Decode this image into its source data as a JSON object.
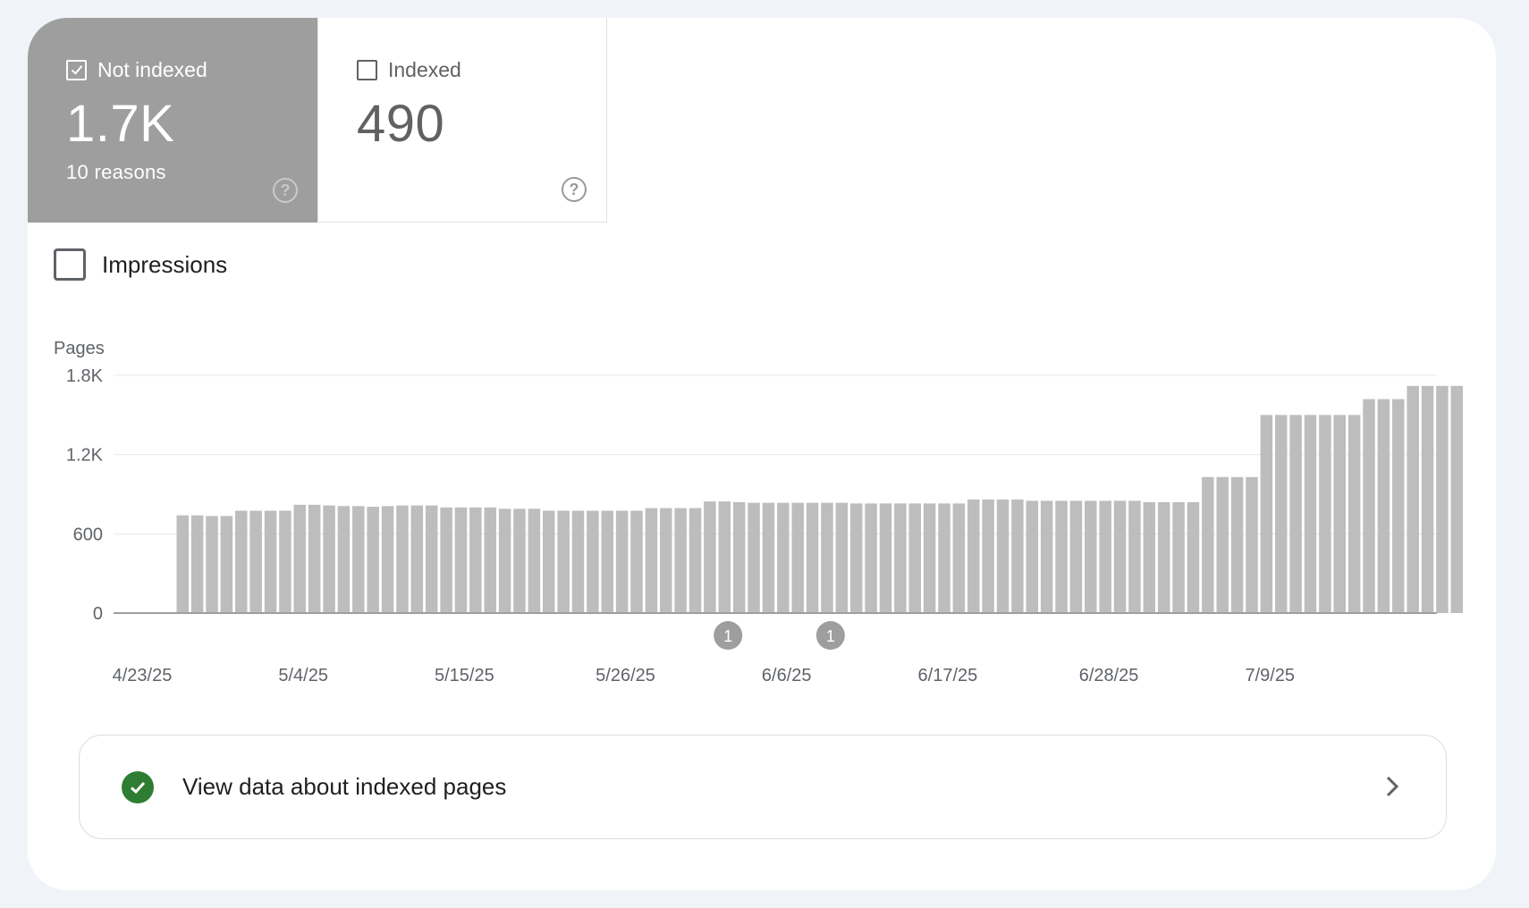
{
  "tiles": {
    "not_indexed": {
      "label": "Not indexed",
      "value": "1.7K",
      "sub": "10 reasons",
      "selected": true
    },
    "indexed": {
      "label": "Indexed",
      "value": "490",
      "selected": false
    }
  },
  "impressions": {
    "label": "Impressions",
    "checked": false
  },
  "chart_data": {
    "type": "bar",
    "ylabel": "Pages",
    "yticks": [
      "0",
      "600",
      "1.2K",
      "1.8K"
    ],
    "ylim": [
      0,
      1800
    ],
    "xtick_labels": [
      "4/23/25",
      "5/4/25",
      "5/15/25",
      "5/26/25",
      "6/6/25",
      "6/17/25",
      "6/28/25",
      "7/9/25"
    ],
    "start_date": "4/23/25",
    "grid": true,
    "series": [
      {
        "color": "#bdbdbd",
        "values": [
          0,
          0,
          0,
          0,
          740,
          740,
          735,
          735,
          775,
          775,
          775,
          775,
          820,
          820,
          815,
          810,
          810,
          805,
          810,
          815,
          815,
          815,
          800,
          800,
          800,
          800,
          790,
          790,
          790,
          775,
          775,
          775,
          775,
          775,
          775,
          775,
          795,
          795,
          795,
          795,
          845,
          845,
          840,
          835,
          835,
          835,
          835,
          835,
          835,
          835,
          830,
          830,
          830,
          830,
          830,
          830,
          830,
          830,
          860,
          860,
          860,
          860,
          850,
          850,
          850,
          850,
          850,
          850,
          850,
          850,
          840,
          840,
          840,
          840,
          1030,
          1030,
          1030,
          1030,
          1500,
          1500,
          1500,
          1500,
          1500,
          1500,
          1500,
          1620,
          1620,
          1620,
          1720,
          1720,
          1720,
          1720
        ]
      }
    ],
    "annotations": [
      {
        "label": "1",
        "date": "6/2/25"
      },
      {
        "label": "1",
        "date": "6/9/25"
      }
    ]
  },
  "cta": {
    "label": "View data about indexed pages",
    "status_icon": "check-circle-icon",
    "arrow_icon": "chevron-right-icon"
  },
  "colors": {
    "selected_tile": "#9e9e9e",
    "bar": "#bdbdbd",
    "ok": "#2e7d32"
  }
}
